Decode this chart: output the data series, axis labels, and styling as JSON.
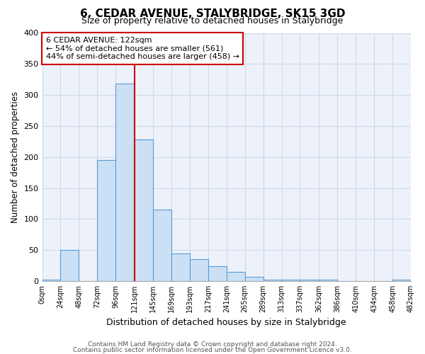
{
  "title": "6, CEDAR AVENUE, STALYBRIDGE, SK15 3GD",
  "subtitle": "Size of property relative to detached houses in Stalybridge",
  "xlabel": "Distribution of detached houses by size in Stalybridge",
  "ylabel": "Number of detached properties",
  "footer1": "Contains HM Land Registry data © Crown copyright and database right 2024.",
  "footer2": "Contains public sector information licensed under the Open Government Licence v3.0.",
  "bar_edges": [
    0,
    24,
    48,
    72,
    96,
    121,
    145,
    169,
    193,
    217,
    241,
    265,
    289,
    313,
    337,
    362,
    386,
    410,
    434,
    458,
    482
  ],
  "bar_heights": [
    2,
    50,
    0,
    195,
    318,
    228,
    115,
    45,
    35,
    24,
    15,
    7,
    2,
    2,
    2,
    2,
    0,
    0,
    0,
    2
  ],
  "bar_color": "#cce0f5",
  "bar_edge_color": "#5b9bd5",
  "grid_color": "#d0d8e8",
  "background_color": "#edf2fa",
  "vline_x": 121,
  "vline_color": "#cc0000",
  "annotation_line1": "6 CEDAR AVENUE: 122sqm",
  "annotation_line2": "← 54% of detached houses are smaller (561)",
  "annotation_line3": "44% of semi-detached houses are larger (458) →",
  "ylim": [
    0,
    400
  ],
  "yticks": [
    0,
    50,
    100,
    150,
    200,
    250,
    300,
    350,
    400
  ],
  "tick_labels": [
    "0sqm",
    "24sqm",
    "48sqm",
    "72sqm",
    "96sqm",
    "121sqm",
    "145sqm",
    "169sqm",
    "193sqm",
    "217sqm",
    "241sqm",
    "265sqm",
    "289sqm",
    "313sqm",
    "337sqm",
    "362sqm",
    "386sqm",
    "410sqm",
    "434sqm",
    "458sqm",
    "482sqm"
  ],
  "xlim": [
    0,
    482
  ]
}
